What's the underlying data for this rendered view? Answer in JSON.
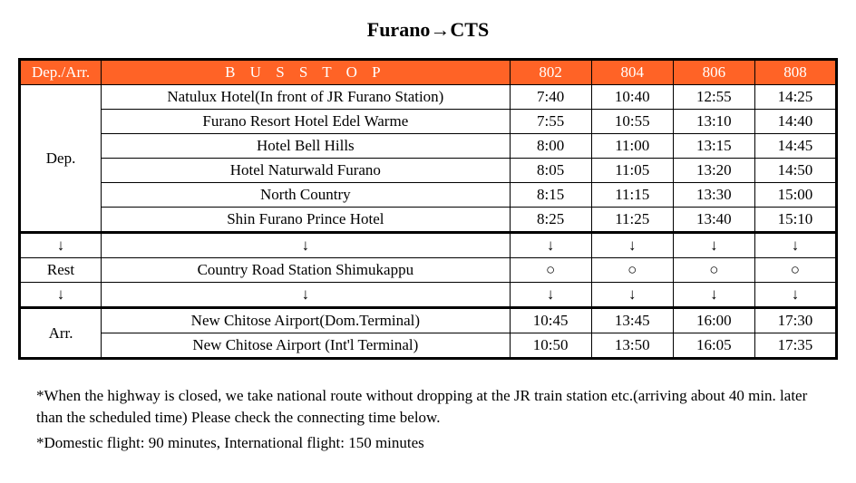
{
  "title": "Furano→CTS",
  "header": {
    "depArr": "Dep./Arr.",
    "busStop": "B U S  S T O P",
    "services": [
      "802",
      "804",
      "806",
      "808"
    ]
  },
  "sections": {
    "dep": {
      "label": "Dep.",
      "stops": [
        {
          "name": "Natulux Hotel(In front of JR Furano Station)",
          "times": [
            "7:40",
            "10:40",
            "12:55",
            "14:25"
          ]
        },
        {
          "name": "Furano Resort Hotel Edel Warme",
          "times": [
            "7:55",
            "10:55",
            "13:10",
            "14:40"
          ]
        },
        {
          "name": "Hotel Bell Hills",
          "times": [
            "8:00",
            "11:00",
            "13:15",
            "14:45"
          ]
        },
        {
          "name": "Hotel Naturwald Furano",
          "times": [
            "8:05",
            "11:05",
            "13:20",
            "14:50"
          ]
        },
        {
          "name": "North Country",
          "times": [
            "8:15",
            "11:15",
            "13:30",
            "15:00"
          ]
        },
        {
          "name": "Shin Furano Prince Hotel",
          "times": [
            "8:25",
            "11:25",
            "13:40",
            "15:10"
          ]
        }
      ]
    },
    "rest": {
      "label": "Rest",
      "stop": "Country Road Station Shimukappu",
      "mark": "○"
    },
    "arr": {
      "label": "Arr.",
      "stops": [
        {
          "name": "New Chitose Airport(Dom.Terminal)",
          "times": [
            "10:45",
            "13:45",
            "16:00",
            "17:30"
          ]
        },
        {
          "name": "New Chitose Airport (Int'l Terminal)",
          "times": [
            "10:50",
            "13:50",
            "16:05",
            "17:35"
          ]
        }
      ]
    }
  },
  "arrow": "↓",
  "notes": [
    "*When the highway is closed, we take national route without dropping at the JR train station etc.(arriving about 40 min. later than the scheduled time) Please check the connecting time below.",
    "*Domestic flight: 90 minutes, International flight: 150 minutes"
  ],
  "style": {
    "header_bg": "#ff6326",
    "header_fg": "#ffffff",
    "border_color": "#000000",
    "title_fontsize": 22,
    "cell_fontsize": 17,
    "notes_fontsize": 17,
    "col_widths": {
      "section": 90,
      "stop": 450,
      "time": 90
    }
  }
}
